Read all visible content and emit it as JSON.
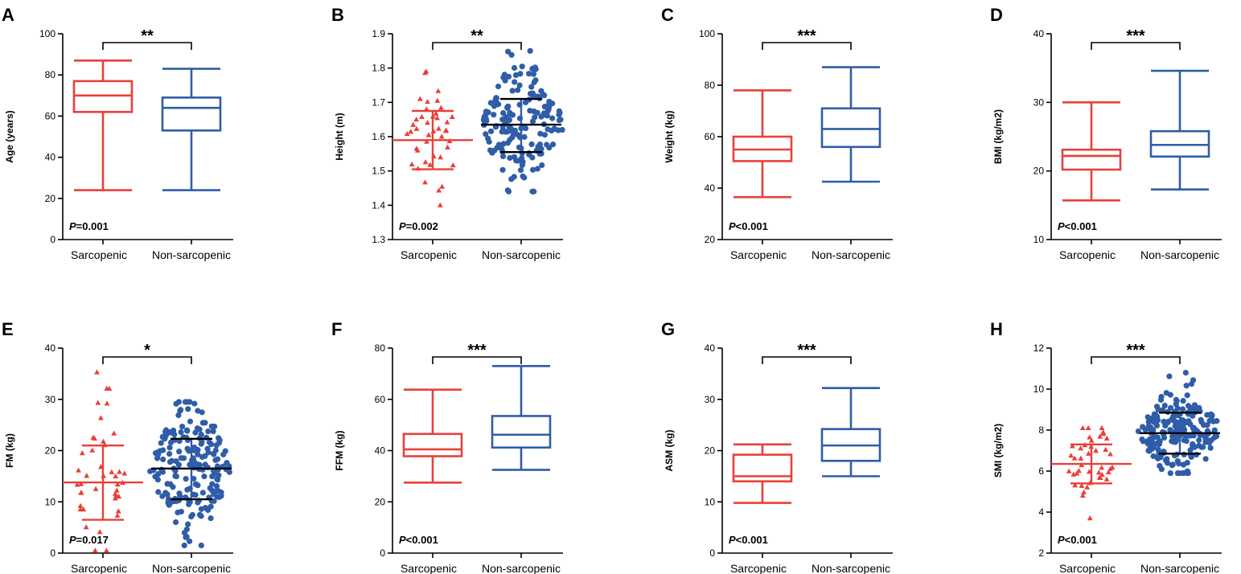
{
  "figure": {
    "colors": {
      "sarcopenic": "#E8403A",
      "non_sarcopenic": "#2F5DA8",
      "axis": "#000000"
    }
  },
  "chart_data": [
    {
      "id": "A",
      "letter": "A",
      "type": "box",
      "ylabel": "Age (years)",
      "ylim": [
        0,
        100
      ],
      "yticks": [
        "0",
        "20",
        "40",
        "60",
        "80",
        "100"
      ],
      "categories": [
        "Sarcopenic",
        "Non-sarcopenic"
      ],
      "groups": [
        {
          "name": "Sarcopenic",
          "min": 24,
          "q1": 62,
          "median": 70,
          "q3": 77,
          "max": 87
        },
        {
          "name": "Non-sarcopenic",
          "min": 24,
          "q1": 53,
          "median": 64,
          "q3": 69,
          "max": 83
        }
      ],
      "significance": "**",
      "p_prefix": "P",
      "p_text": "=0.001"
    },
    {
      "id": "B",
      "letter": "B",
      "type": "scatter",
      "ylabel": "Height (m)",
      "ylim": [
        1.3,
        1.9
      ],
      "yticks": [
        "1.3",
        "1.4",
        "1.5",
        "1.6",
        "1.7",
        "1.8",
        "1.9"
      ],
      "categories": [
        "Sarcopenic",
        "Non-sarcopenic"
      ],
      "groups": [
        {
          "name": "Sarcopenic",
          "marker": "triangle",
          "mean": 1.59,
          "sd_low": 1.505,
          "sd_high": 1.675,
          "n": 42,
          "min": 1.4,
          "max": 1.79
        },
        {
          "name": "Non-sarcopenic",
          "marker": "circle",
          "mean": 1.635,
          "sd_low": 1.555,
          "sd_high": 1.71,
          "n": 170,
          "min": 1.44,
          "max": 1.85
        }
      ],
      "significance": "**",
      "p_prefix": "P",
      "p_text": "=0.002"
    },
    {
      "id": "C",
      "letter": "C",
      "type": "box",
      "ylabel": "Weight (kg)",
      "ylim": [
        20,
        100
      ],
      "yticks": [
        "20",
        "40",
        "60",
        "80",
        "100"
      ],
      "categories": [
        "Sarcopenic",
        "Non-sarcopenic"
      ],
      "groups": [
        {
          "name": "Sarcopenic",
          "min": 36.5,
          "q1": 50.5,
          "median": 55,
          "q3": 60,
          "max": 78
        },
        {
          "name": "Non-sarcopenic",
          "min": 42.5,
          "q1": 56,
          "median": 63,
          "q3": 71,
          "max": 87
        }
      ],
      "significance": "***",
      "p_prefix": "P",
      "p_text": "<0.001"
    },
    {
      "id": "D",
      "letter": "D",
      "type": "box",
      "ylabel": "BMI (kg/m2)",
      "ylim": [
        10,
        40
      ],
      "yticks": [
        "10",
        "20",
        "30",
        "40"
      ],
      "categories": [
        "Sarcopenic",
        "Non-sarcopenic"
      ],
      "groups": [
        {
          "name": "Sarcopenic",
          "min": 15.7,
          "q1": 20.2,
          "median": 22.2,
          "q3": 23.1,
          "max": 30
        },
        {
          "name": "Non-sarcopenic",
          "min": 17.3,
          "q1": 22.1,
          "median": 23.8,
          "q3": 25.8,
          "max": 34.6
        }
      ],
      "significance": "***",
      "p_prefix": "P",
      "p_text": "<0.001"
    },
    {
      "id": "E",
      "letter": "E",
      "type": "scatter",
      "ylabel": "FM (kg)",
      "ylim": [
        0,
        40
      ],
      "yticks": [
        "0",
        "10",
        "20",
        "30",
        "40"
      ],
      "categories": [
        "Sarcopenic",
        "Non-sarcopenic"
      ],
      "groups": [
        {
          "name": "Sarcopenic",
          "marker": "triangle",
          "mean": 13.8,
          "sd_low": 6.5,
          "sd_high": 21,
          "n": 42,
          "min": 0.5,
          "max": 35.3
        },
        {
          "name": "Non-sarcopenic",
          "marker": "circle",
          "mean": 16.5,
          "sd_low": 10.5,
          "sd_high": 22.3,
          "n": 200,
          "min": 1.5,
          "max": 29.5
        }
      ],
      "significance": "*",
      "p_prefix": "P",
      "p_text": "=0.017"
    },
    {
      "id": "F",
      "letter": "F",
      "type": "box",
      "ylabel": "FFM (kg)",
      "ylim": [
        0,
        80
      ],
      "yticks": [
        "0",
        "20",
        "40",
        "60",
        "80"
      ],
      "categories": [
        "Sarcopenic",
        "Non-sarcopenic"
      ],
      "groups": [
        {
          "name": "Sarcopenic",
          "min": 27.5,
          "q1": 37.8,
          "median": 40.5,
          "q3": 46.5,
          "max": 63.8
        },
        {
          "name": "Non-sarcopenic",
          "min": 32.5,
          "q1": 41.2,
          "median": 46.2,
          "q3": 53.5,
          "max": 73
        }
      ],
      "significance": "***",
      "p_prefix": "P",
      "p_text": "<0.001"
    },
    {
      "id": "G",
      "letter": "G",
      "type": "box",
      "ylabel": "ASM (kg)",
      "ylim": [
        0,
        40
      ],
      "yticks": [
        "0",
        "10",
        "20",
        "30",
        "40"
      ],
      "categories": [
        "Sarcopenic",
        "Non-sarcopenic"
      ],
      "groups": [
        {
          "name": "Sarcopenic",
          "min": 9.8,
          "q1": 14,
          "median": 15,
          "q3": 19.2,
          "max": 21.2
        },
        {
          "name": "Non-sarcopenic",
          "min": 15,
          "q1": 18,
          "median": 21,
          "q3": 24.2,
          "max": 32.2
        }
      ],
      "significance": "***",
      "p_prefix": "P",
      "p_text": "<0.001"
    },
    {
      "id": "H",
      "letter": "H",
      "type": "scatter",
      "ylabel": "SMI (kg/m2)",
      "ylim": [
        2,
        12
      ],
      "yticks": [
        "2",
        "4",
        "6",
        "8",
        "10",
        "12"
      ],
      "categories": [
        "Sarcopenic",
        "Non-sarcopenic"
      ],
      "groups": [
        {
          "name": "Sarcopenic",
          "marker": "triangle",
          "mean": 6.35,
          "sd_low": 5.4,
          "sd_high": 7.3,
          "n": 42,
          "min": 3.7,
          "max": 8.1
        },
        {
          "name": "Non-sarcopenic",
          "marker": "circle",
          "mean": 7.85,
          "sd_low": 6.85,
          "sd_high": 8.85,
          "n": 220,
          "min": 5.9,
          "max": 10.8
        }
      ],
      "significance": "***",
      "p_prefix": "P",
      "p_text": "<0.001"
    }
  ]
}
